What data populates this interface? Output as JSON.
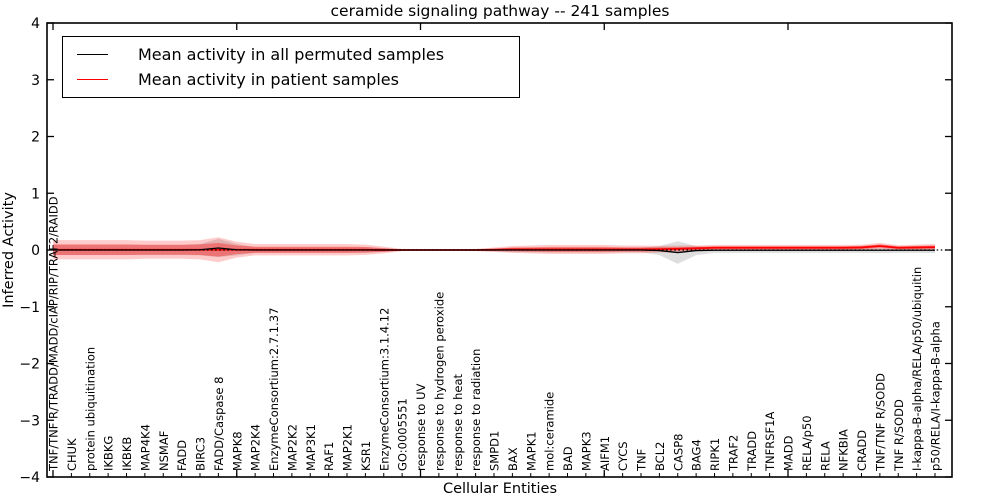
{
  "title": "ceramide signaling pathway -- 241 samples",
  "legend": {
    "items": [
      {
        "label": "Mean activity in all permuted samples",
        "color": "#000000"
      },
      {
        "label": "Mean activity in patient samples",
        "color": "#ff0000"
      }
    ]
  },
  "chart_data": {
    "type": "line",
    "title": "ceramide signaling pathway -- 241 samples",
    "xlabel": "Cellular Entities",
    "ylabel": "Inferred Activity",
    "ylim": [
      -4,
      4
    ],
    "yticks": [
      4,
      3,
      2,
      1,
      0,
      -1,
      -2,
      -3,
      -4
    ],
    "xticks_major_indices": [
      0,
      10,
      20,
      30,
      40
    ],
    "grid": false,
    "legend_position": "upper left",
    "zero_line": {
      "style": "dotted",
      "color": "#000000",
      "y": 0
    },
    "categories": [
      "TNF/TNF R/TRADD/MADD/cIAP/RIP/TRAF2/RAIDD",
      "CHUK",
      "protein ubiquitination",
      "IKBKG",
      "IKBKB",
      "MAP4K4",
      "NSMAF",
      "FADD",
      "BIRC3",
      "FADD/Caspase 8",
      "MAPK8",
      "MAP2K4",
      "EnzymeConsortium:2.7.1.37",
      "MAP2K2",
      "MAP3K1",
      "RAF1",
      "MAP2K1",
      "KSR1",
      "EnzymeConsortium:3.1.4.12",
      "GO:0005551",
      "response to UV",
      "response to hydrogen peroxide",
      "response to heat",
      "response to radiation",
      "SMPD1",
      "BAX",
      "MAPK1",
      "mol:ceramide",
      "BAD",
      "MAPK3",
      "AIFM1",
      "CYCS",
      "TNF",
      "BCL2",
      "CASP8",
      "BAG4",
      "RIPK1",
      "TRAF2",
      "TRADD",
      "TNFRSF1A",
      "MADD",
      "RELA/p50",
      "RELA",
      "NFKBIA",
      "CRADD",
      "TNF/TNF R/SODD",
      "TNF R/SODD",
      "I-kappa-B-alpha/RELA/p50/ubiquitin",
      "p50/RELA/I-kappa-B-alpha"
    ],
    "series": [
      {
        "name": "Mean activity in all permuted samples",
        "color": "#000000",
        "values": [
          0,
          0,
          0,
          0,
          0,
          0,
          0,
          0,
          0.005,
          0.035,
          0.005,
          0,
          0,
          0,
          0,
          0,
          0,
          0,
          0,
          0,
          0,
          0,
          0,
          0,
          0,
          0,
          0,
          0,
          0,
          0,
          0,
          0,
          0,
          -0.01,
          -0.045,
          -0.01,
          -0.005,
          -0.005,
          -0.005,
          -0.005,
          -0.005,
          -0.005,
          -0.005,
          -0.005,
          -0.005,
          -0.005,
          -0.005,
          -0.005,
          -0.005
        ]
      },
      {
        "name": "Mean activity in patient samples",
        "color": "#ff0000",
        "values": [
          0.005,
          0.005,
          0.005,
          0.005,
          0.005,
          0.005,
          0.005,
          0.005,
          0.005,
          0.005,
          0.005,
          0.005,
          0.005,
          0.005,
          0.005,
          0.005,
          0.005,
          0.005,
          0,
          0,
          0,
          0,
          0,
          0,
          0.005,
          0.01,
          0.01,
          0.01,
          0.01,
          0.01,
          0.01,
          0.01,
          0.01,
          0.015,
          0.02,
          0.03,
          0.04,
          0.04,
          0.04,
          0.04,
          0.04,
          0.04,
          0.04,
          0.04,
          0.045,
          0.07,
          0.04,
          0.045,
          0.05
        ]
      }
    ],
    "bands": {
      "permuted": {
        "color": "#000000",
        "alpha": 0.13,
        "half_widths": [
          0.09,
          0.09,
          0.09,
          0.09,
          0.09,
          0.09,
          0.09,
          0.09,
          0.1,
          0.16,
          0.1,
          0.05,
          0.05,
          0.05,
          0.05,
          0.05,
          0.05,
          0.05,
          0.03,
          0.012,
          0.01,
          0.01,
          0.01,
          0.015,
          0.025,
          0.04,
          0.04,
          0.045,
          0.045,
          0.045,
          0.045,
          0.04,
          0.04,
          0.08,
          0.2,
          0.08,
          0.045,
          0.045,
          0.045,
          0.045,
          0.045,
          0.045,
          0.045,
          0.045,
          0.045,
          0.05,
          0.045,
          0.045,
          0.05
        ]
      },
      "patient_outer": {
        "color": "#ff0000",
        "alpha": 0.2,
        "half_widths": [
          0.17,
          0.17,
          0.17,
          0.17,
          0.17,
          0.16,
          0.16,
          0.16,
          0.17,
          0.22,
          0.14,
          0.1,
          0.1,
          0.1,
          0.1,
          0.1,
          0.1,
          0.09,
          0.06,
          0.02,
          0.015,
          0.015,
          0.015,
          0.02,
          0.04,
          0.06,
          0.07,
          0.08,
          0.08,
          0.08,
          0.08,
          0.07,
          0.07,
          0.06,
          0.06,
          0.05,
          0.05,
          0.05,
          0.05,
          0.05,
          0.05,
          0.05,
          0.05,
          0.05,
          0.05,
          0.055,
          0.045,
          0.05,
          0.055
        ]
      },
      "patient_inner": {
        "color": "#ff0000",
        "alpha": 0.34,
        "half_widths": [
          0.094,
          0.094,
          0.094,
          0.094,
          0.094,
          0.088,
          0.088,
          0.088,
          0.094,
          0.121,
          0.077,
          0.055,
          0.055,
          0.055,
          0.055,
          0.055,
          0.055,
          0.05,
          0.033,
          0.011,
          0.008,
          0.008,
          0.008,
          0.011,
          0.022,
          0.033,
          0.039,
          0.044,
          0.044,
          0.044,
          0.044,
          0.039,
          0.039,
          0.033,
          0.033,
          0.028,
          0.028,
          0.028,
          0.028,
          0.028,
          0.028,
          0.028,
          0.028,
          0.028,
          0.028,
          0.03,
          0.025,
          0.028,
          0.03
        ]
      }
    }
  }
}
